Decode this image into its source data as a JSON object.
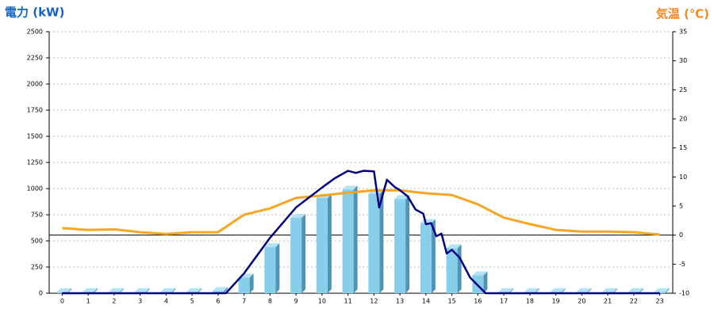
{
  "chart_data": {
    "type": "bar",
    "y_title": "電力 (kW)",
    "y2_title": "気温 (℃)",
    "categories": [
      "0",
      "1",
      "2",
      "3",
      "4",
      "5",
      "6",
      "7",
      "8",
      "9",
      "10",
      "11",
      "12",
      "13",
      "14",
      "15",
      "16",
      "17",
      "18",
      "19",
      "20",
      "21",
      "22",
      "23"
    ],
    "series": [
      {
        "type": "bar",
        "color": "#87ceeb",
        "values": [
          10,
          10,
          10,
          10,
          10,
          10,
          20,
          150,
          440,
          720,
          910,
          990,
          950,
          900,
          670,
          430,
          170,
          10,
          10,
          10,
          10,
          10,
          10,
          10
        ]
      },
      {
        "type": "line",
        "axis": "y2",
        "color": "#f5a623",
        "values": [
          1.2,
          0.9,
          1.0,
          0.5,
          0.2,
          0.5,
          0.5,
          3.5,
          4.6,
          6.4,
          6.8,
          7.3,
          7.7,
          7.7,
          7.2,
          6.9,
          5.3,
          3.0,
          1.9,
          0.9,
          0.6,
          0.6,
          0.5,
          0.1
        ]
      },
      {
        "type": "line",
        "color": "#000080",
        "x": [
          0,
          6.3,
          7,
          8,
          9,
          10,
          10.5,
          11,
          11.3,
          11.6,
          12,
          12.2,
          12.5,
          12.8,
          13,
          13.3,
          13.6,
          13.9,
          14,
          14.2,
          14.4,
          14.6,
          14.8,
          15,
          15.3,
          15.7,
          16,
          16.3,
          23
        ],
        "values": [
          0,
          0,
          190,
          530,
          820,
          1010,
          1100,
          1170,
          1150,
          1170,
          1165,
          820,
          1085,
          1015,
          985,
          925,
          800,
          760,
          660,
          670,
          545,
          570,
          380,
          415,
          340,
          150,
          75,
          0,
          0
        ]
      }
    ],
    "ylim": [
      0,
      2500
    ],
    "yticks": [
      0,
      250,
      500,
      750,
      1000,
      1250,
      1500,
      1750,
      2000,
      2250,
      2500
    ],
    "y2lim": [
      -10,
      35
    ],
    "y2ticks": [
      -10,
      -5,
      0,
      5,
      10,
      15,
      20,
      25,
      30,
      35
    ],
    "grid": true
  }
}
